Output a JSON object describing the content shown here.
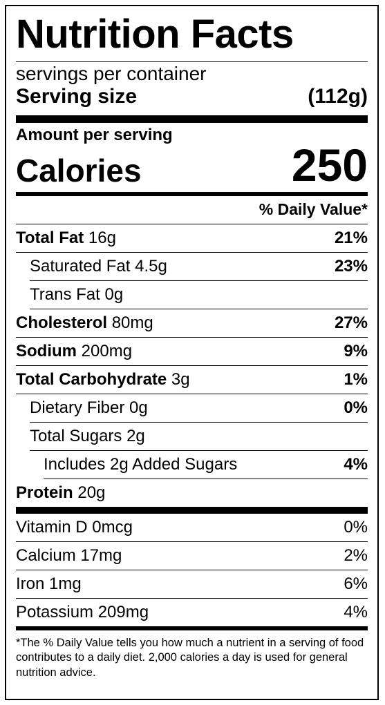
{
  "title": "Nutrition Facts",
  "servings_text": "servings per container",
  "serving_size": {
    "label": "Serving size",
    "value": "(112g)"
  },
  "amount_per_serving": "Amount per serving",
  "calories": {
    "label": "Calories",
    "value": "250"
  },
  "daily_value_header": "% Daily Value*",
  "nutrients": [
    {
      "name": "Total Fat",
      "amount": "16g",
      "dv": "21%"
    },
    {
      "name": "Saturated Fat 4.5g",
      "amount": "",
      "dv": "23%"
    },
    {
      "name": "Trans Fat 0g",
      "amount": "",
      "dv": ""
    },
    {
      "name": "Cholesterol",
      "amount": "80mg",
      "dv": "27%"
    },
    {
      "name": "Sodium",
      "amount": "200mg",
      "dv": "9%"
    },
    {
      "name": "Total Carbohydrate",
      "amount": "3g",
      "dv": "1%"
    },
    {
      "name": "Dietary Fiber 0g",
      "amount": "",
      "dv": "0%"
    },
    {
      "name": "Total Sugars 2g",
      "amount": "",
      "dv": ""
    },
    {
      "name": "Includes 2g Added Sugars",
      "amount": "",
      "dv": "4%"
    },
    {
      "name": "Protein",
      "amount": "20g",
      "dv": ""
    }
  ],
  "vitamins": [
    {
      "name": "Vitamin D 0mcg",
      "dv": "0%"
    },
    {
      "name": "Calcium 17mg",
      "dv": "2%"
    },
    {
      "name": "Iron 1mg",
      "dv": "6%"
    },
    {
      "name": "Potassium 209mg",
      "dv": "4%"
    }
  ],
  "footnote": "*The % Daily Value tells you how much a nutrient in a serving of food contributes to a daily diet. 2,000 calories a day is used for general nutrition advice."
}
